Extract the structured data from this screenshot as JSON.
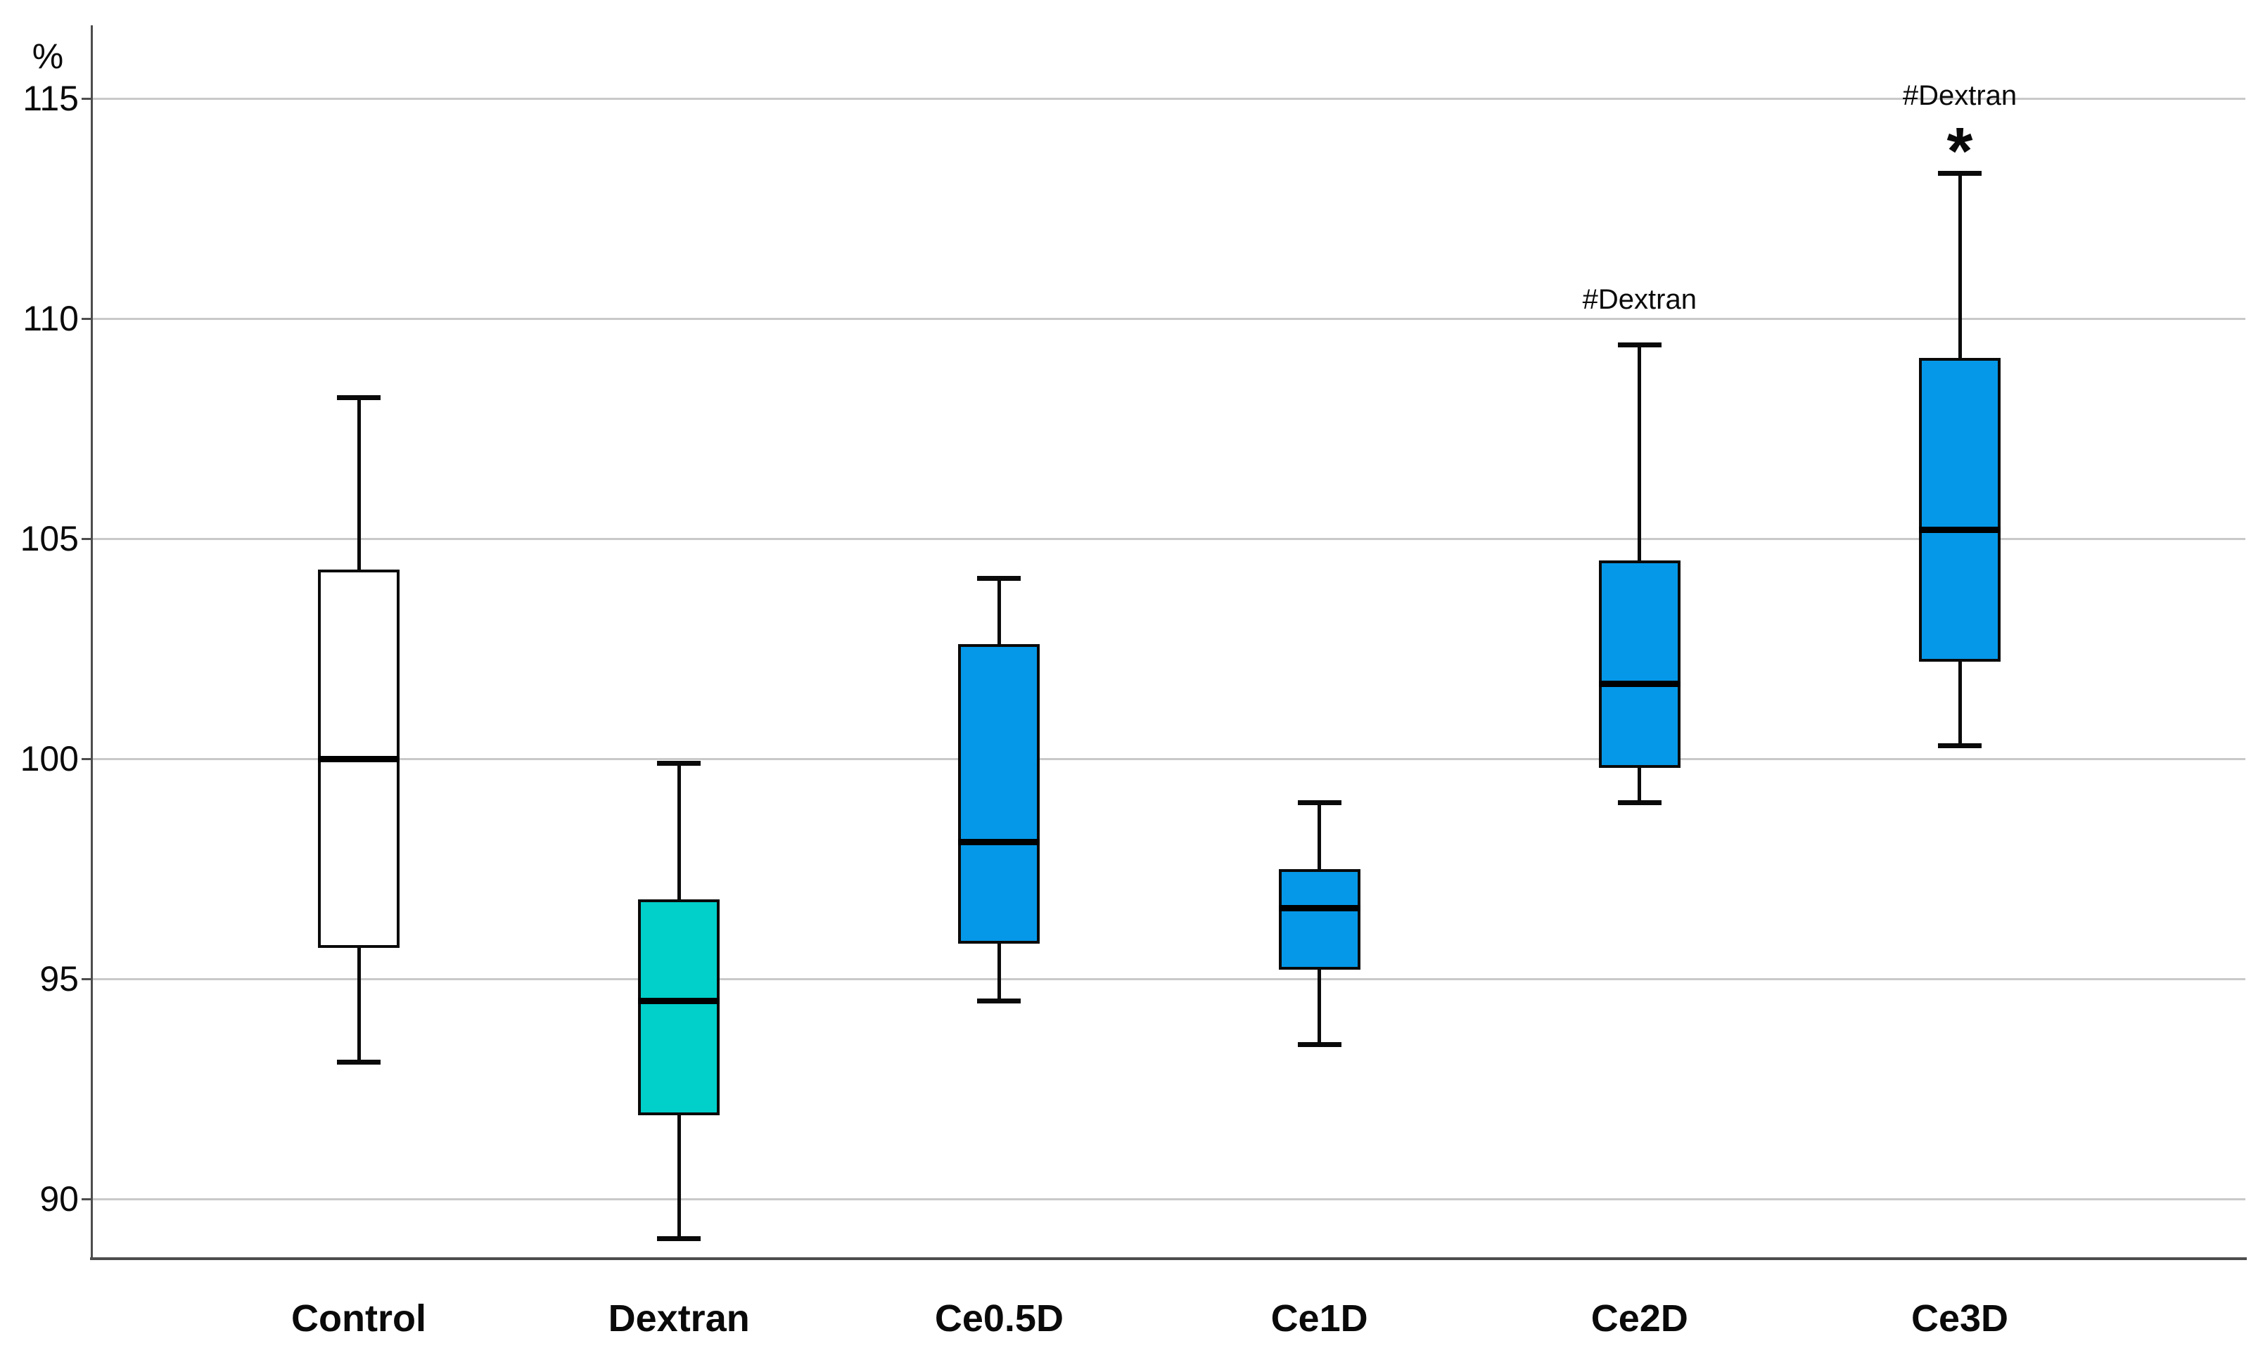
{
  "chart_data": {
    "type": "boxplot",
    "title": "",
    "ylabel": "%",
    "xlabel": "",
    "yticks": [
      115,
      110,
      105,
      100,
      95,
      90
    ],
    "ylim": [
      88.6,
      116.8
    ],
    "grid": "horizontal",
    "legend": null,
    "categories": [
      "Control",
      "Dextran",
      "Ce0.5D",
      "Ce1D",
      "Ce2D",
      "Ce3D"
    ],
    "boxes": [
      {
        "category": "Control",
        "whisker_low": 93.1,
        "q1": 95.7,
        "median": 100.0,
        "q3": 104.3,
        "whisker_high": 108.2,
        "fill": "#FFFFFF",
        "annotation": "",
        "star": ""
      },
      {
        "category": "Dextran",
        "whisker_low": 89.1,
        "q1": 91.9,
        "median": 94.5,
        "q3": 96.8,
        "whisker_high": 99.9,
        "fill": "#00CFCA",
        "annotation": "",
        "star": ""
      },
      {
        "category": "Ce0.5D",
        "whisker_low": 94.5,
        "q1": 95.8,
        "median": 98.1,
        "q3": 102.6,
        "whisker_high": 104.1,
        "fill": "#0598E8",
        "annotation": "",
        "star": ""
      },
      {
        "category": "Ce1D",
        "whisker_low": 93.5,
        "q1": 95.2,
        "median": 96.6,
        "q3": 97.5,
        "whisker_high": 99.0,
        "fill": "#0598E8",
        "annotation": "",
        "star": ""
      },
      {
        "category": "Ce2D",
        "whisker_low": 99.0,
        "q1": 99.8,
        "median": 101.7,
        "q3": 104.5,
        "whisker_high": 109.4,
        "fill": "#0598E8",
        "annotation": "#Dextran",
        "star": ""
      },
      {
        "category": "Ce3D",
        "whisker_low": 100.3,
        "q1": 102.2,
        "median": 105.2,
        "q3": 109.1,
        "whisker_high": 113.3,
        "fill": "#0598E8",
        "annotation": "#Dextran",
        "star": "*"
      }
    ],
    "colors": {
      "box_blue": "#0598E8",
      "box_teal": "#00CFCA",
      "box_white": "#FFFFFF",
      "box_border": "#0a0a0a",
      "gridline": "#C9C9C9",
      "axis": "#4D4D4D",
      "text": "#0a0a0a"
    }
  }
}
